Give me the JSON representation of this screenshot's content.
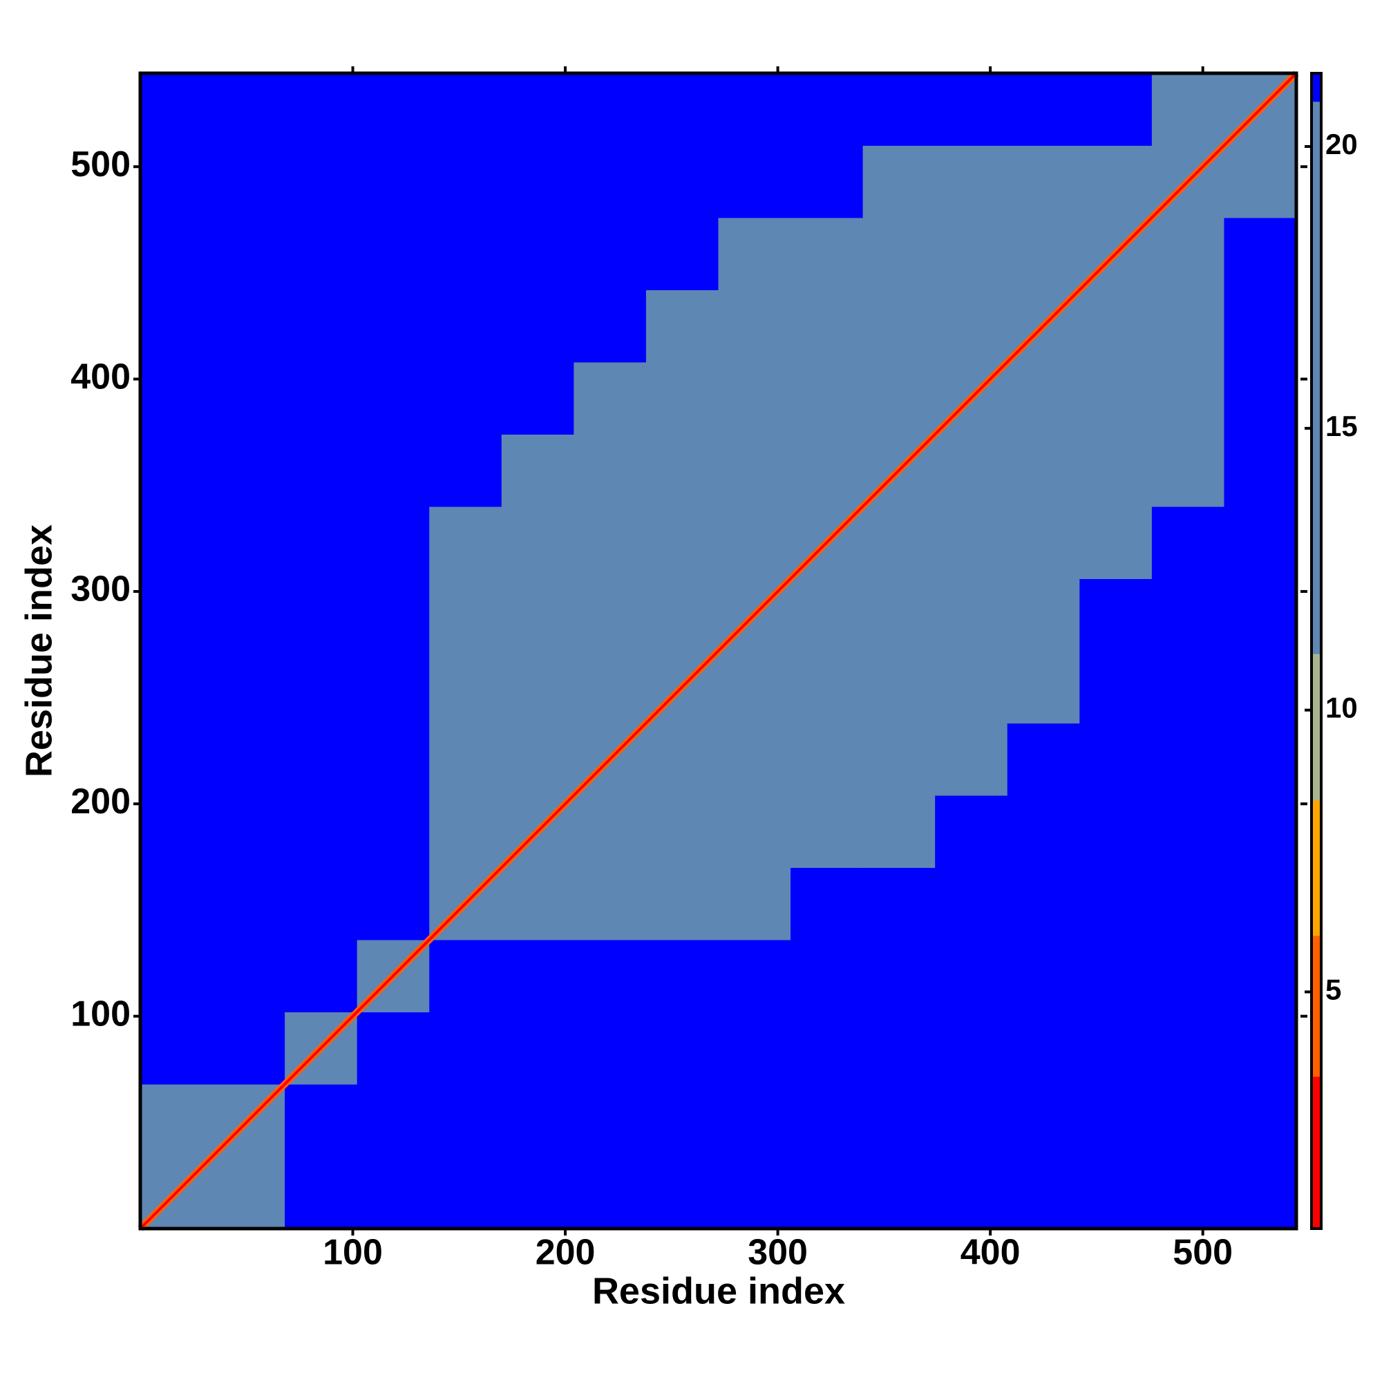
{
  "chart_data": {
    "type": "heatmap",
    "xlabel": "Residue index",
    "ylabel": "Residue index",
    "xlim": [
      0,
      544
    ],
    "ylim": [
      0,
      544
    ],
    "xticks": [
      100,
      200,
      300,
      400,
      500
    ],
    "yticks": [
      100,
      200,
      300,
      400,
      500
    ],
    "x_bins": [
      0,
      34,
      68,
      102,
      136,
      170,
      204,
      238,
      272,
      306,
      340,
      374,
      408,
      442,
      476,
      510,
      544
    ],
    "y_bins": [
      0,
      34,
      68,
      102,
      136,
      170,
      204,
      238,
      272,
      306,
      340,
      374,
      408,
      442,
      476,
      510,
      544
    ],
    "matrix": [
      [
        12,
        19,
        21,
        21,
        21,
        21,
        21,
        21,
        21,
        21,
        21,
        21,
        21,
        21,
        21,
        21
      ],
      [
        19,
        14,
        21,
        21,
        21,
        21,
        21,
        21,
        21,
        21,
        21,
        21,
        21,
        21,
        21,
        21
      ],
      [
        21,
        21,
        16,
        21,
        21,
        21,
        21,
        21,
        21,
        21,
        21,
        21,
        21,
        21,
        21,
        21
      ],
      [
        21,
        21,
        21,
        15,
        21,
        21,
        21,
        21,
        21,
        21,
        21,
        21,
        21,
        21,
        21,
        21
      ],
      [
        21,
        21,
        21,
        21,
        14,
        18,
        18,
        19,
        20,
        21,
        21,
        21,
        21,
        21,
        21,
        21
      ],
      [
        21,
        21,
        21,
        21,
        17,
        12,
        17,
        17,
        18,
        19,
        20,
        21,
        21,
        21,
        21,
        21
      ],
      [
        21,
        21,
        21,
        21,
        18,
        17,
        12,
        17,
        17,
        18,
        19,
        20,
        21,
        21,
        21,
        21
      ],
      [
        21,
        21,
        21,
        21,
        19,
        18,
        17,
        12,
        17,
        17,
        18,
        19,
        20,
        21,
        21,
        21
      ],
      [
        21,
        21,
        21,
        21,
        19,
        18,
        17,
        17,
        12,
        17,
        17,
        18,
        19,
        21,
        21,
        21
      ],
      [
        21,
        21,
        21,
        21,
        20,
        19,
        18,
        17,
        17,
        12,
        17,
        17,
        18,
        19,
        21,
        21
      ],
      [
        21,
        21,
        21,
        21,
        21,
        20,
        19,
        18,
        17,
        17,
        12,
        17,
        17,
        18,
        19,
        21
      ],
      [
        21,
        21,
        21,
        21,
        21,
        21,
        20,
        19,
        18,
        17,
        17,
        12,
        17,
        17,
        18,
        21
      ],
      [
        21,
        21,
        21,
        21,
        21,
        21,
        21,
        20,
        19,
        18,
        17,
        17,
        12,
        17,
        17,
        21
      ],
      [
        21,
        21,
        21,
        21,
        21,
        21,
        21,
        21,
        20,
        19,
        18,
        17,
        17,
        12,
        17,
        21
      ],
      [
        21,
        21,
        21,
        21,
        21,
        21,
        21,
        21,
        21,
        21,
        20,
        19,
        18,
        17,
        12,
        20
      ],
      [
        21,
        21,
        21,
        21,
        21,
        21,
        21,
        21,
        21,
        21,
        21,
        21,
        21,
        21,
        20,
        14
      ]
    ],
    "diagonal_value": 3.8,
    "clim": [
      0.8,
      21.3
    ],
    "cticks": [
      5,
      10,
      15,
      20
    ],
    "colormap": [
      {
        "value": 0.8,
        "color": "#ff0000"
      },
      {
        "value": 3.5,
        "color": "#ff6000"
      },
      {
        "value": 6,
        "color": "#ffa500"
      },
      {
        "value": 8.4,
        "color": "#a9b48f"
      },
      {
        "value": 11,
        "color": "#5f87b3"
      },
      {
        "value": 20.8,
        "color": "#0000ff"
      }
    ]
  }
}
